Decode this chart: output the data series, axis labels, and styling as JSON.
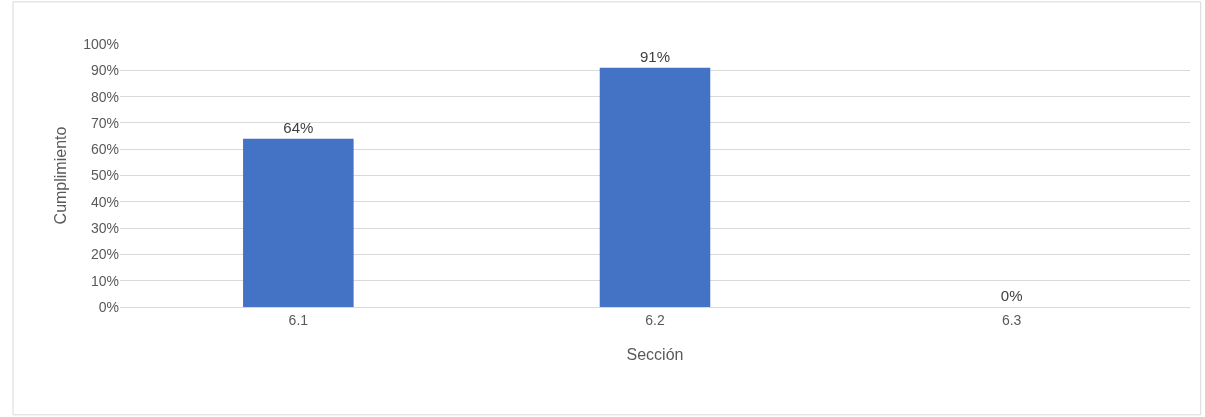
{
  "chart_data": {
    "type": "bar",
    "xlabel": "Sección",
    "ylabel": "Cumplimiento",
    "categories": [
      "6.1",
      "6.2",
      "6.3"
    ],
    "values": [
      64,
      91,
      0
    ],
    "value_labels": [
      "64%",
      "91%",
      "0%"
    ],
    "color": "#4472c4",
    "ylim": [
      0,
      100
    ],
    "yticks": [
      {
        "value": 0,
        "label": "0%"
      },
      {
        "value": 10,
        "label": "10%"
      },
      {
        "value": 20,
        "label": "20%"
      },
      {
        "value": 30,
        "label": "30%"
      },
      {
        "value": 40,
        "label": "40%"
      },
      {
        "value": 50,
        "label": "50%"
      },
      {
        "value": 60,
        "label": "60%"
      },
      {
        "value": 70,
        "label": "70%"
      },
      {
        "value": 80,
        "label": "80%"
      },
      {
        "value": 90,
        "label": "90%"
      },
      {
        "value": 100,
        "label": "100%"
      }
    ],
    "grid": "y"
  }
}
